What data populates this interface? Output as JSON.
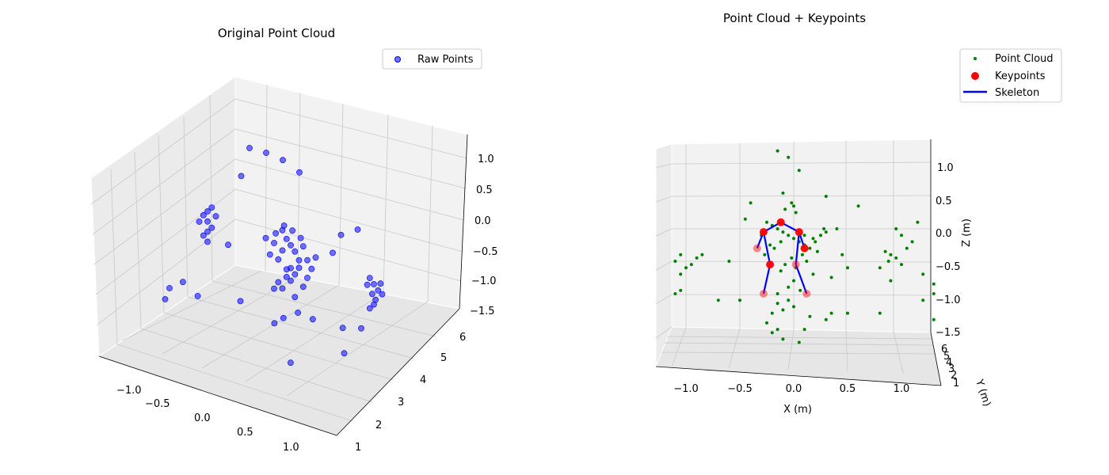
{
  "charts": [
    {
      "title": "Original Point Cloud",
      "legend": [
        "Raw Points"
      ],
      "x_ticks": [
        "−1.0",
        "−0.5",
        "0.0",
        "0.5",
        "1.0"
      ],
      "y_ticks": [
        "1",
        "2",
        "3",
        "4",
        "5",
        "6"
      ],
      "z_ticks": [
        "1.0",
        "0.5",
        "0.0",
        "−0.5",
        "−1.0",
        "−1.5"
      ]
    },
    {
      "title": "Point Cloud + Keypoints",
      "legend": [
        "Point Cloud",
        "Keypoints",
        "Skeleton"
      ],
      "x_label": "X (m)",
      "y_label": "Y (m)",
      "z_label": "Z (m)",
      "x_ticks": [
        "−1.0",
        "−0.5",
        "0.0",
        "0.5",
        "1.0"
      ],
      "y_ticks": [
        "6",
        "5",
        "4",
        "3",
        "2",
        "1"
      ],
      "z_ticks": [
        "1.0",
        "0.5",
        "0.0",
        "−0.5",
        "−1.0",
        "−1.5"
      ]
    }
  ],
  "chart_data": [
    {
      "type": "scatter",
      "projection": "3d",
      "title": "Original Point Cloud",
      "xlabel": "",
      "ylabel": "",
      "zlabel": "",
      "xlim": [
        -1.2,
        1.2
      ],
      "ylim": [
        1,
        6.3
      ],
      "zlim": [
        -1.5,
        1.2
      ],
      "legend_position": "top-right",
      "grid": true,
      "series": [
        {
          "name": "Raw Points",
          "color": "#0000ff",
          "points": [
            [
              -1.0,
              4.5,
              0.0
            ],
            [
              -1.05,
              4.5,
              -0.1
            ],
            [
              -1.0,
              4.5,
              -0.2
            ],
            [
              -0.95,
              4.5,
              -0.3
            ],
            [
              -1.0,
              4.5,
              -0.4
            ],
            [
              -0.9,
              4.5,
              -0.05
            ],
            [
              -1.1,
              4.5,
              -0.25
            ],
            [
              -1.0,
              4.5,
              -0.6
            ],
            [
              -0.95,
              4.5,
              0.1
            ],
            [
              -1.05,
              4.5,
              -0.5
            ],
            [
              -0.1,
              4.5,
              0.05
            ],
            [
              -0.05,
              4.5,
              -0.1
            ],
            [
              0.0,
              4.5,
              -0.2
            ],
            [
              0.05,
              4.5,
              -0.3
            ],
            [
              -0.1,
              4.5,
              -0.35
            ],
            [
              0.1,
              4.5,
              -0.45
            ],
            [
              -0.15,
              4.5,
              -0.55
            ],
            [
              0.0,
              4.5,
              -0.65
            ],
            [
              0.05,
              4.5,
              -0.75
            ],
            [
              -0.05,
              4.5,
              -0.85
            ],
            [
              0.15,
              4.5,
              -0.15
            ],
            [
              -0.2,
              4.5,
              -0.25
            ],
            [
              0.2,
              4.5,
              -0.4
            ],
            [
              -0.25,
              4.5,
              -0.5
            ],
            [
              0.1,
              4.5,
              -0.6
            ],
            [
              -0.05,
              4.5,
              -0.7
            ],
            [
              0.0,
              4.5,
              -0.9
            ],
            [
              -0.15,
              4.5,
              -1.0
            ],
            [
              0.15,
              4.5,
              -0.95
            ],
            [
              -0.1,
              4.5,
              -1.1
            ],
            [
              0.05,
              4.5,
              -1.2
            ],
            [
              -0.2,
              4.5,
              -1.15
            ],
            [
              0.2,
              4.5,
              -0.75
            ],
            [
              0.3,
              4.5,
              -0.3
            ],
            [
              -0.3,
              4.5,
              -0.2
            ],
            [
              -0.08,
              4.5,
              0.15
            ],
            [
              0.02,
              4.5,
              0.1
            ],
            [
              0.12,
              4.5,
              0.0
            ],
            [
              -0.18,
              4.5,
              -0.05
            ],
            [
              0.25,
              4.5,
              -0.55
            ],
            [
              0.95,
              4.5,
              -0.4
            ],
            [
              1.0,
              4.5,
              -0.5
            ],
            [
              1.05,
              4.5,
              -0.6
            ],
            [
              0.98,
              4.5,
              -0.7
            ],
            [
              1.02,
              4.5,
              -0.8
            ],
            [
              0.92,
              4.5,
              -0.55
            ],
            [
              1.08,
              4.5,
              -0.45
            ],
            [
              1.0,
              4.5,
              -0.9
            ],
            [
              1.1,
              4.5,
              -0.65
            ],
            [
              0.95,
              4.5,
              -1.0
            ],
            [
              -0.8,
              5.5,
              1.0
            ],
            [
              -0.6,
              5.5,
              1.0
            ],
            [
              -0.4,
              5.5,
              0.95
            ],
            [
              -0.2,
              5.5,
              0.8
            ],
            [
              0.5,
              5.5,
              0.0
            ],
            [
              0.3,
              5.5,
              -0.2
            ],
            [
              -0.9,
              5.5,
              0.4
            ],
            [
              0.2,
              5.5,
              -0.6
            ],
            [
              -0.6,
              4.0,
              -0.3
            ],
            [
              -0.9,
              2.5,
              -1.0
            ],
            [
              -1.0,
              3.0,
              -1.0
            ],
            [
              -0.9,
              3.2,
              -0.9
            ],
            [
              -0.6,
              2.8,
              -0.9
            ],
            [
              -0.3,
              3.5,
              -1.1
            ],
            [
              0.2,
              3.2,
              -1.2
            ],
            [
              0.4,
              2.9,
              -0.9
            ],
            [
              0.6,
              3.4,
              -1.0
            ],
            [
              0.9,
              3.6,
              -1.1
            ],
            [
              0.3,
              3.8,
              -1.15
            ],
            [
              1.0,
              4.0,
              -1.2
            ],
            [
              1.1,
              3.0,
              -1.3
            ],
            [
              0.7,
              2.2,
              -1.4
            ]
          ]
        }
      ]
    },
    {
      "type": "scatter",
      "projection": "3d",
      "title": "Point Cloud + Keypoints",
      "xlabel": "X (m)",
      "ylabel": "Y (m)",
      "zlabel": "Z (m)",
      "xlim": [
        -1.3,
        1.3
      ],
      "ylim": [
        1,
        6.3
      ],
      "zlim": [
        -1.5,
        1.2
      ],
      "legend_position": "top-right",
      "grid": true,
      "series": [
        {
          "name": "Point Cloud",
          "color": "#008000",
          "points": [
            [
              -0.15,
              4.5,
              1.2
            ],
            [
              -0.05,
              4.5,
              1.1
            ],
            [
              0.05,
              4.5,
              0.9
            ],
            [
              -0.4,
              4.5,
              0.4
            ],
            [
              0.3,
              4.5,
              0.5
            ],
            [
              -0.1,
              4.5,
              0.55
            ],
            [
              -0.02,
              4.5,
              0.4
            ],
            [
              0.0,
              4.5,
              0.35
            ],
            [
              -0.08,
              4.5,
              0.3
            ],
            [
              0.02,
              4.5,
              0.25
            ],
            [
              -0.25,
              4.5,
              0.1
            ],
            [
              -0.2,
              4.5,
              0.05
            ],
            [
              -0.15,
              4.5,
              0.0
            ],
            [
              -0.1,
              4.5,
              -0.05
            ],
            [
              -0.05,
              4.5,
              -0.1
            ],
            [
              0.0,
              4.5,
              -0.15
            ],
            [
              0.05,
              4.5,
              -0.2
            ],
            [
              0.1,
              4.5,
              -0.25
            ],
            [
              0.15,
              4.5,
              -0.3
            ],
            [
              0.2,
              4.5,
              -0.2
            ],
            [
              0.25,
              4.5,
              -0.1
            ],
            [
              0.3,
              4.5,
              -0.05
            ],
            [
              0.28,
              4.5,
              0.0
            ],
            [
              0.18,
              4.5,
              -0.15
            ],
            [
              -0.12,
              4.5,
              -0.2
            ],
            [
              -0.18,
              4.5,
              -0.3
            ],
            [
              -0.22,
              4.5,
              -0.25
            ],
            [
              0.08,
              4.5,
              -0.4
            ],
            [
              -0.02,
              4.5,
              -0.45
            ],
            [
              0.12,
              4.5,
              -0.5
            ],
            [
              -0.08,
              4.5,
              -0.55
            ],
            [
              0.02,
              4.5,
              -0.6
            ],
            [
              -0.12,
              4.5,
              -0.65
            ],
            [
              0.18,
              4.5,
              -0.7
            ],
            [
              0.0,
              4.5,
              -0.8
            ],
            [
              -0.05,
              4.5,
              -0.9
            ],
            [
              0.06,
              4.5,
              -0.95
            ],
            [
              -0.15,
              4.5,
              -1.0
            ],
            [
              0.1,
              4.5,
              -0.1
            ],
            [
              -0.3,
              4.5,
              -0.1
            ],
            [
              0.22,
              4.5,
              -0.35
            ],
            [
              -0.27,
              4.5,
              -0.4
            ],
            [
              -0.05,
              4.5,
              -1.1
            ],
            [
              -0.15,
              4.5,
              -1.15
            ],
            [
              -0.1,
              4.5,
              -1.25
            ],
            [
              0.0,
              4.5,
              -1.2
            ],
            [
              -0.2,
              4.5,
              -1.3
            ],
            [
              0.15,
              4.5,
              -1.35
            ],
            [
              -0.25,
              4.5,
              -1.45
            ],
            [
              0.3,
              4.5,
              -1.4
            ],
            [
              0.5,
              4.5,
              -1.3
            ],
            [
              -0.5,
              4.5,
              -1.1
            ],
            [
              -0.2,
              4.5,
              -1.6
            ],
            [
              -0.1,
              4.5,
              -1.7
            ],
            [
              0.05,
              4.5,
              -1.75
            ],
            [
              -0.15,
              4.5,
              -1.55
            ],
            [
              0.45,
              4.5,
              -0.4
            ],
            [
              0.35,
              4.5,
              -0.75
            ],
            [
              0.4,
              4.5,
              0.0
            ],
            [
              0.5,
              4.5,
              -0.6
            ],
            [
              -1.05,
              4.5,
              -0.4
            ],
            [
              -1.1,
              4.5,
              -0.5
            ],
            [
              -1.0,
              4.5,
              -0.6
            ],
            [
              -1.05,
              4.5,
              -0.7
            ],
            [
              -0.9,
              4.5,
              -0.45
            ],
            [
              -0.95,
              4.5,
              -0.55
            ],
            [
              -0.85,
              4.5,
              -0.4
            ],
            [
              -1.05,
              4.5,
              -0.95
            ],
            [
              -1.1,
              4.5,
              -1.0
            ],
            [
              0.85,
              4.5,
              -0.35
            ],
            [
              0.9,
              4.5,
              -0.4
            ],
            [
              0.95,
              4.5,
              -0.45
            ],
            [
              0.88,
              4.5,
              -0.5
            ],
            [
              1.0,
              4.5,
              -0.55
            ],
            [
              1.05,
              4.5,
              -0.3
            ],
            [
              1.1,
              4.5,
              -0.2
            ],
            [
              1.0,
              4.5,
              -0.1
            ],
            [
              0.95,
              4.5,
              0.0
            ],
            [
              1.15,
              4.5,
              0.1
            ],
            [
              0.8,
              4.5,
              -0.6
            ],
            [
              1.2,
              4.5,
              -0.7
            ],
            [
              0.9,
              4.5,
              -0.8
            ],
            [
              1.3,
              4.5,
              -0.85
            ],
            [
              1.3,
              4.5,
              -1.0
            ],
            [
              1.2,
              4.5,
              -1.1
            ],
            [
              0.8,
              4.5,
              -1.3
            ],
            [
              1.3,
              4.5,
              -1.4
            ],
            [
              -0.7,
              4.5,
              -1.1
            ],
            [
              -0.6,
              4.5,
              -0.5
            ],
            [
              0.35,
              4.5,
              -1.3
            ],
            [
              0.6,
              4.5,
              0.35
            ],
            [
              -0.45,
              4.5,
              0.15
            ],
            [
              0.1,
              4.5,
              -1.55
            ]
          ]
        },
        {
          "name": "Keypoints",
          "color": "#ff0000",
          "points": [
            [
              -0.12,
              4.5,
              0.1
            ],
            [
              -0.28,
              4.5,
              -0.05
            ],
            [
              0.05,
              4.5,
              -0.05
            ],
            [
              -0.34,
              4.5,
              -0.3
            ],
            [
              0.1,
              4.5,
              -0.3
            ],
            [
              -0.22,
              4.5,
              -0.55
            ],
            [
              0.02,
              4.5,
              -0.55
            ],
            [
              -0.28,
              4.5,
              -1.0
            ],
            [
              0.12,
              4.5,
              -1.0
            ]
          ]
        },
        {
          "name": "Skeleton",
          "color": "#0000ff",
          "segments": [
            [
              0,
              1
            ],
            [
              0,
              2
            ],
            [
              1,
              3
            ],
            [
              2,
              4
            ],
            [
              1,
              5
            ],
            [
              2,
              6
            ],
            [
              5,
              7
            ],
            [
              6,
              8
            ]
          ]
        }
      ]
    }
  ]
}
